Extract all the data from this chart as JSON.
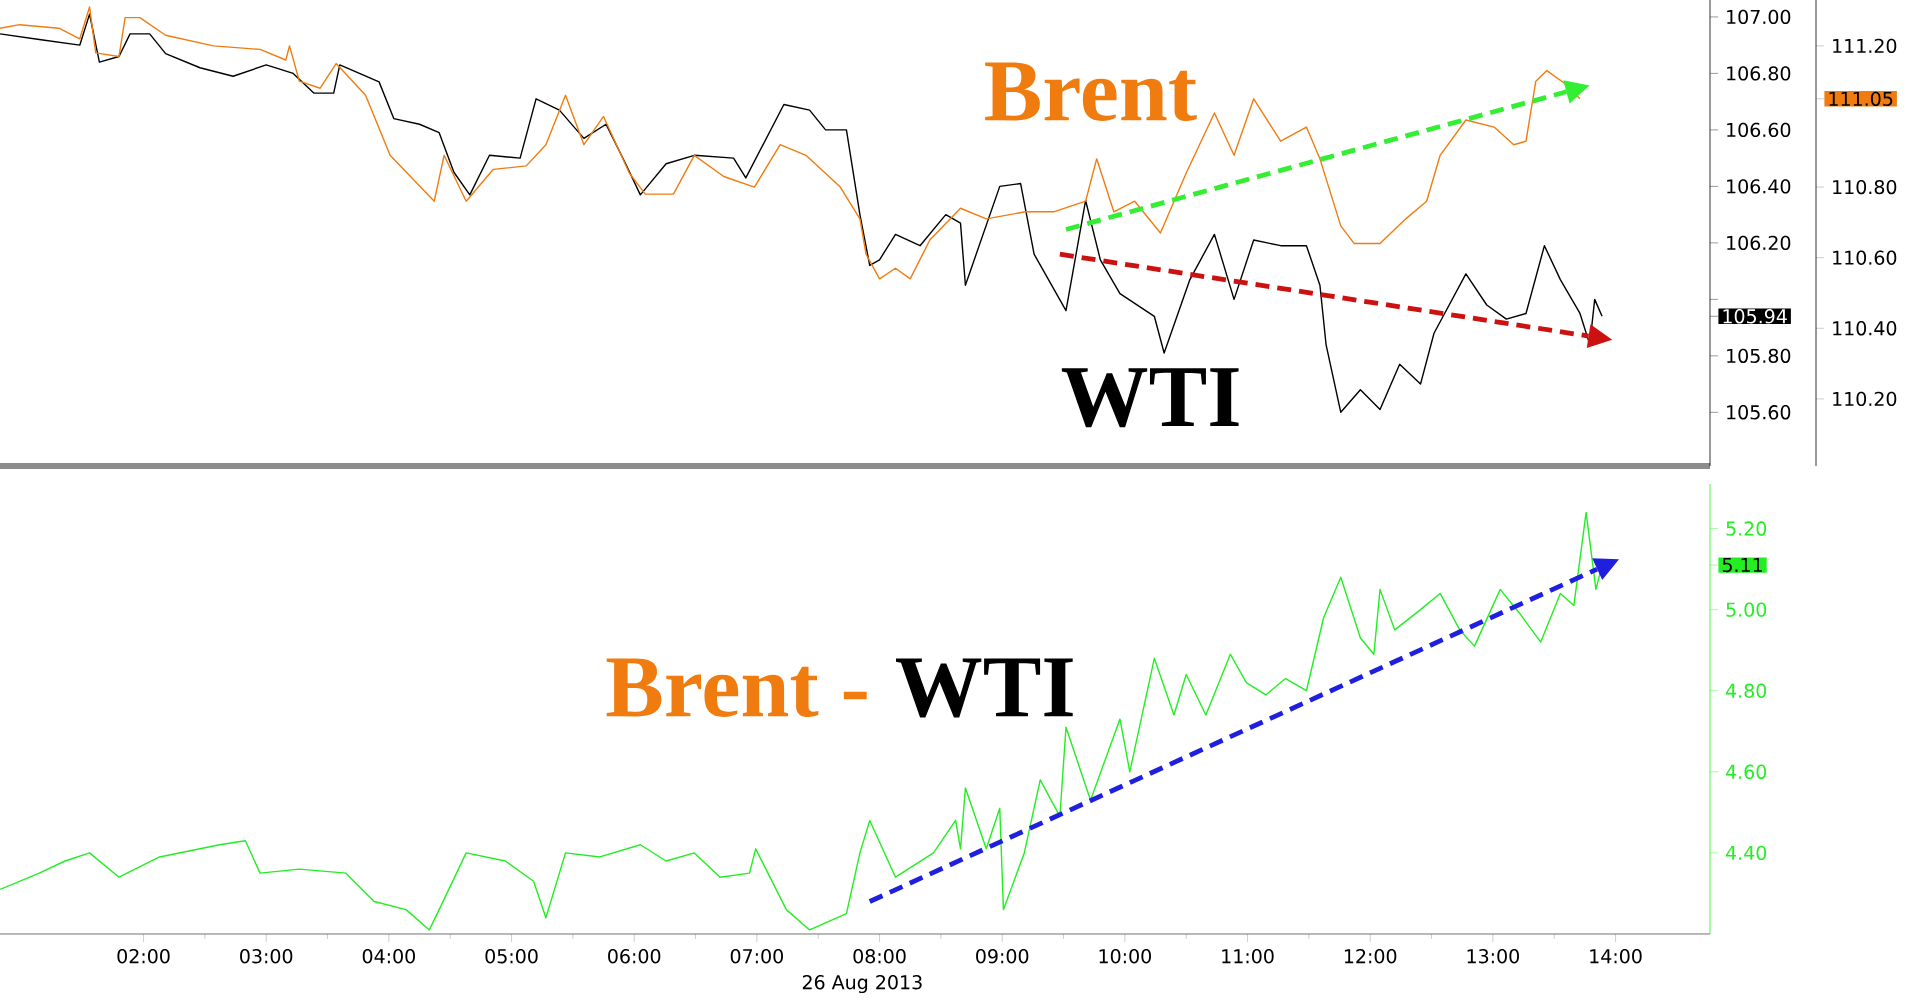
{
  "chart_data": [
    {
      "type": "line",
      "xlim": [
        0.83,
        14.77
      ],
      "tick_labels": "y",
      "ylim": [
        105.41,
        107.06
      ],
      "yticks": [
        {
          "value": 105.6,
          "label": "105.60"
        },
        {
          "value": 105.8,
          "label": "105.80"
        },
        {
          "value": 105.94,
          "label": "105.94"
        },
        {
          "value": 106.0,
          "label": null
        },
        {
          "value": 106.2,
          "label": "106.20"
        },
        {
          "value": 106.4,
          "label": "106.40"
        },
        {
          "value": 106.6,
          "label": "106.60"
        },
        {
          "value": 106.8,
          "label": "106.80"
        },
        {
          "value": 107.0,
          "label": "107.00"
        }
      ],
      "y2lim": [
        110.01,
        111.33
      ],
      "y2ticks": [
        {
          "value": 110.2,
          "label": "110.20"
        },
        {
          "value": 110.4,
          "label": "110.40"
        },
        {
          "value": 110.6,
          "label": "110.60"
        },
        {
          "value": 110.8,
          "label": "110.80"
        },
        {
          "value": 111.05,
          "label": "111.05"
        },
        {
          "value": 111.2,
          "label": "111.20"
        }
      ],
      "series": [
        {
          "name": "Brent",
          "color": "#f07c10",
          "axis": "y2",
          "x": [
            0.83,
            0.99,
            1.31,
            1.48,
            1.56,
            1.61,
            1.8,
            1.85,
            1.97,
            2.18,
            2.57,
            2.95,
            3.16,
            3.19,
            3.27,
            3.44,
            3.57,
            3.81,
            4.01,
            4.37,
            4.45,
            4.63,
            4.85,
            5.12,
            5.28,
            5.44,
            5.59,
            5.75,
            5.96,
            6.09,
            6.32,
            6.49,
            6.73,
            6.98,
            7.19,
            7.4,
            7.68,
            7.84,
            7.89,
            8.0,
            8.13,
            8.25,
            8.41,
            8.66,
            8.87,
            9.19,
            9.42,
            9.68,
            9.77,
            9.91,
            10.08,
            10.29,
            10.5,
            10.73,
            10.89,
            11.05,
            11.27,
            11.48,
            11.59,
            11.76,
            11.87,
            12.08,
            12.29,
            12.46,
            12.57,
            12.78,
            13.01,
            13.17,
            13.27,
            13.35,
            13.44,
            13.6,
            13.71
          ],
          "values": [
            111.25,
            111.26,
            111.25,
            111.22,
            111.31,
            111.18,
            111.17,
            111.28,
            111.28,
            111.23,
            111.2,
            111.19,
            111.16,
            111.2,
            111.1,
            111.08,
            111.15,
            111.06,
            110.89,
            110.76,
            110.89,
            110.76,
            110.85,
            110.86,
            110.92,
            111.06,
            110.92,
            111.0,
            110.84,
            110.78,
            110.78,
            110.89,
            110.83,
            110.8,
            110.92,
            110.89,
            110.8,
            110.71,
            110.61,
            110.54,
            110.57,
            110.54,
            110.65,
            110.74,
            110.71,
            110.73,
            110.73,
            110.76,
            110.88,
            110.73,
            110.76,
            110.67,
            110.84,
            111.01,
            110.89,
            111.05,
            110.93,
            110.97,
            110.88,
            110.69,
            110.64,
            110.64,
            110.71,
            110.76,
            110.89,
            110.99,
            110.97,
            110.92,
            110.93,
            111.1,
            111.13,
            111.09,
            111.05
          ]
        },
        {
          "name": "WTI",
          "color": "#000000",
          "x": [
            0.83,
            1.15,
            1.48,
            1.56,
            1.64,
            1.8,
            1.89,
            2.05,
            2.18,
            2.46,
            2.73,
            3.0,
            3.22,
            3.39,
            3.55,
            3.6,
            3.92,
            4.04,
            4.25,
            4.41,
            4.53,
            4.66,
            4.82,
            5.07,
            5.2,
            5.39,
            5.59,
            5.77,
            5.93,
            6.05,
            6.26,
            6.49,
            6.81,
            6.91,
            7.22,
            7.43,
            7.56,
            7.73,
            7.84,
            7.92,
            8.0,
            8.13,
            8.33,
            8.54,
            8.66,
            8.7,
            8.98,
            9.15,
            9.26,
            9.52,
            9.68,
            9.8,
            9.96,
            10.24,
            10.32,
            10.53,
            10.73,
            10.89,
            11.05,
            11.27,
            11.48,
            11.59,
            11.64,
            11.76,
            11.92,
            12.08,
            12.24,
            12.41,
            12.52,
            12.78,
            12.95,
            13.11,
            13.27,
            13.42,
            13.55,
            13.71,
            13.79,
            13.83,
            13.89
          ],
          "values": [
            106.94,
            106.92,
            106.9,
            107.01,
            106.84,
            106.86,
            106.94,
            106.94,
            106.87,
            106.82,
            106.79,
            106.83,
            106.8,
            106.73,
            106.73,
            106.83,
            106.77,
            106.64,
            106.62,
            106.59,
            106.45,
            106.37,
            106.51,
            106.5,
            106.71,
            106.67,
            106.57,
            106.62,
            106.48,
            106.37,
            106.48,
            106.51,
            106.5,
            106.43,
            106.69,
            106.67,
            106.6,
            106.6,
            106.3,
            106.12,
            106.14,
            106.23,
            106.19,
            106.3,
            106.27,
            106.05,
            106.4,
            106.41,
            106.16,
            105.96,
            106.35,
            106.14,
            106.02,
            105.94,
            105.81,
            106.07,
            106.23,
            106.0,
            106.21,
            106.19,
            106.19,
            106.05,
            105.84,
            105.6,
            105.68,
            105.61,
            105.77,
            105.7,
            105.88,
            106.09,
            105.98,
            105.93,
            105.95,
            106.19,
            106.07,
            105.95,
            105.84,
            106.0,
            105.94
          ]
        },
        {
          "type": "line",
          "line_style": "dashed",
          "color": "#33ee33",
          "axis": "y2",
          "x": [
            9.52,
            13.6
          ],
          "values": [
            110.68,
            111.07
          ]
        },
        {
          "type": "line",
          "line_style": "dashed",
          "color": "#cc1111",
          "x": [
            9.47,
            13.78
          ],
          "values": [
            106.16,
            105.87
          ]
        }
      ]
    },
    {
      "type": "line",
      "xlim": [
        0.83,
        14.77
      ],
      "xticks": [
        {
          "value": 2,
          "label": "02:00"
        },
        {
          "value": 3,
          "label": "03:00"
        },
        {
          "value": 4,
          "label": "04:00"
        },
        {
          "value": 5,
          "label": "05:00"
        },
        {
          "value": 6,
          "label": "06:00"
        },
        {
          "value": 7,
          "label": "07:00"
        },
        {
          "value": 8,
          "label": "08:00"
        },
        {
          "value": 9,
          "label": "09:00"
        },
        {
          "value": 10,
          "label": "10:00"
        },
        {
          "value": 11,
          "label": "11:00"
        },
        {
          "value": 12,
          "label": "12:00"
        },
        {
          "value": 13,
          "label": "13:00"
        },
        {
          "value": 14,
          "label": "14:00"
        }
      ],
      "xlabel": "26 Aug 2013",
      "ylim": [
        4.2,
        5.31
      ],
      "yticks": [
        {
          "value": 4.4,
          "label": "4.40"
        },
        {
          "value": 4.6,
          "label": "4.60"
        },
        {
          "value": 4.8,
          "label": "4.80"
        },
        {
          "value": 5.0,
          "label": "5.00"
        },
        {
          "value": 5.11,
          "label": "5.11"
        },
        {
          "value": 5.2,
          "label": "5.20"
        }
      ],
      "annotations": [
        "Brent -",
        "WTI"
      ],
      "series": [
        {
          "color": "#22ee22",
          "x": [
            0.83,
            1.15,
            1.36,
            1.56,
            1.8,
            2.13,
            2.62,
            2.83,
            2.95,
            3.27,
            3.65,
            3.88,
            4.14,
            4.33,
            4.41,
            4.63,
            4.95,
            5.18,
            5.28,
            5.44,
            5.72,
            6.05,
            6.26,
            6.49,
            6.7,
            6.94,
            6.99,
            7.24,
            7.43,
            7.73,
            7.84,
            7.92,
            8.13,
            8.44,
            8.62,
            8.66,
            8.7,
            8.87,
            8.98,
            9.01,
            9.18,
            9.31,
            9.47,
            9.52,
            9.72,
            9.96,
            10.04,
            10.24,
            10.4,
            10.5,
            10.66,
            10.86,
            10.99,
            11.15,
            11.31,
            11.48,
            11.62,
            11.76,
            11.92,
            12.03,
            12.08,
            12.2,
            12.41,
            12.57,
            12.73,
            12.85,
            13.06,
            13.22,
            13.39,
            13.55,
            13.66,
            13.76,
            13.84,
            13.89
          ],
          "values": [
            4.31,
            4.35,
            4.38,
            4.4,
            4.34,
            4.39,
            4.42,
            4.43,
            4.35,
            4.36,
            4.35,
            4.28,
            4.26,
            4.21,
            4.26,
            4.4,
            4.38,
            4.33,
            4.24,
            4.4,
            4.39,
            4.42,
            4.38,
            4.4,
            4.34,
            4.35,
            4.41,
            4.26,
            4.21,
            4.25,
            4.4,
            4.48,
            4.34,
            4.4,
            4.48,
            4.41,
            4.56,
            4.41,
            4.51,
            4.26,
            4.4,
            4.58,
            4.49,
            4.71,
            4.53,
            4.73,
            4.6,
            4.88,
            4.74,
            4.84,
            4.74,
            4.89,
            4.82,
            4.79,
            4.83,
            4.8,
            4.98,
            5.08,
            4.93,
            4.89,
            5.05,
            4.95,
            5.0,
            5.04,
            4.95,
            4.91,
            5.05,
            4.99,
            4.92,
            5.04,
            5.01,
            5.24,
            5.05,
            5.11
          ]
        },
        {
          "type": "line",
          "line_style": "dashed",
          "color": "#1f1fe0",
          "x": [
            7.92,
            13.85
          ],
          "values": [
            4.28,
            5.1
          ]
        }
      ]
    }
  ]
}
